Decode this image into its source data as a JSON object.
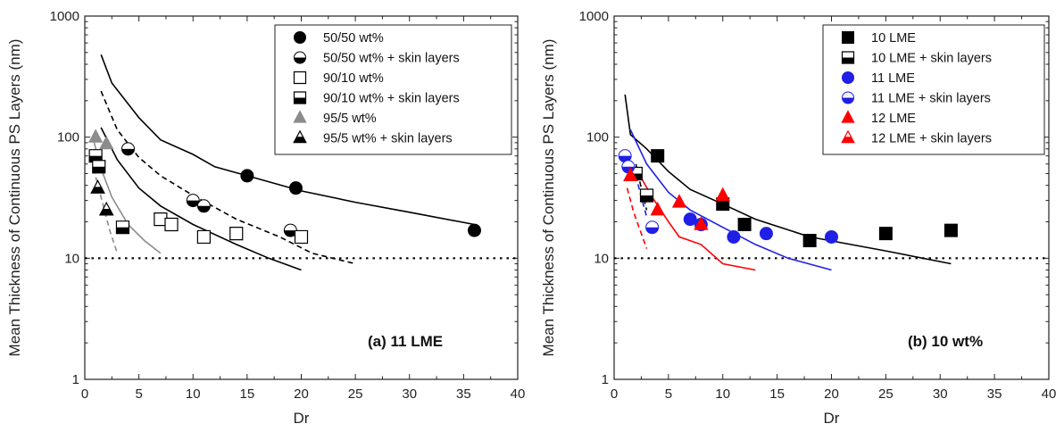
{
  "chart_data": [
    {
      "type": "scatter",
      "panel_label": "(a) 11 LME",
      "xlabel": "Dr",
      "ylabel": "Mean Thickness of Continuous PS Layers (nm)",
      "xlim": [
        0,
        40
      ],
      "ylim": [
        1,
        1000
      ],
      "yscale": "log",
      "x_ticks": [
        "0",
        "5",
        "10",
        "15",
        "20",
        "25",
        "30",
        "35",
        "40"
      ],
      "y_ticks": [
        "1",
        "10",
        "100",
        "1000"
      ],
      "legend_position": "top-right",
      "reference_line": {
        "y": 10,
        "style": "dotted"
      },
      "series": [
        {
          "name": "50/50 wt%",
          "marker": "circle",
          "fill": "full",
          "color": "#000000",
          "points": [
            [
              15,
              48
            ],
            [
              19.5,
              38
            ],
            [
              36,
              17
            ]
          ]
        },
        {
          "name": "50/50 wt% + skin layers",
          "marker": "circle",
          "fill": "half",
          "color": "#000000",
          "points": [
            [
              4,
              80
            ],
            [
              10,
              30
            ],
            [
              11,
              27
            ],
            [
              19,
              17
            ]
          ]
        },
        {
          "name": "90/10 wt%",
          "marker": "square",
          "fill": "none",
          "color": "#000000",
          "points": [
            [
              7,
              21
            ],
            [
              8,
              19
            ],
            [
              11,
              15
            ],
            [
              14,
              16
            ],
            [
              20,
              15
            ]
          ]
        },
        {
          "name": "90/10 wt% + skin layers",
          "marker": "square",
          "fill": "half",
          "color": "#000000",
          "points": [
            [
              1,
              70
            ],
            [
              1.3,
              57
            ],
            [
              3.5,
              18
            ]
          ]
        },
        {
          "name": "95/5 wt%",
          "marker": "triangle",
          "fill": "full",
          "color": "#8c8c8c",
          "points": [
            [
              1,
              100
            ],
            [
              2,
              88
            ]
          ]
        },
        {
          "name": "95/5 wt% + skin layers",
          "marker": "triangle",
          "fill": "half",
          "color": "#000000",
          "points": [
            [
              1.2,
              38
            ],
            [
              2,
              25
            ]
          ]
        }
      ],
      "curves": [
        {
          "color": "#000000",
          "style": "solid",
          "points": [
            [
              1.5,
              480
            ],
            [
              2.5,
              280
            ],
            [
              5,
              145
            ],
            [
              7,
              95
            ],
            [
              10,
              72
            ],
            [
              12,
              57
            ],
            [
              15,
              48
            ],
            [
              20,
              36
            ],
            [
              25,
              29
            ],
            [
              30,
              24
            ],
            [
              36,
              19
            ]
          ]
        },
        {
          "color": "#000000",
          "style": "dashed",
          "points": [
            [
              1.5,
              240
            ],
            [
              3,
              115
            ],
            [
              5,
              68
            ],
            [
              7,
              48
            ],
            [
              10,
              33
            ],
            [
              14,
              21
            ],
            [
              18,
              15
            ],
            [
              21,
              11
            ],
            [
              25,
              9
            ]
          ]
        },
        {
          "color": "#000000",
          "style": "solid",
          "points": [
            [
              1.5,
              120
            ],
            [
              3,
              65
            ],
            [
              5,
              38
            ],
            [
              7,
              27
            ],
            [
              10,
              19
            ],
            [
              14,
              13
            ],
            [
              17,
              10
            ],
            [
              20,
              8
            ]
          ]
        },
        {
          "color": "#8c8c8c",
          "style": "solid",
          "points": [
            [
              0.8,
              95
            ],
            [
              1.5,
              55
            ],
            [
              2.5,
              32
            ],
            [
              4,
              19
            ],
            [
              5.5,
              14
            ],
            [
              7,
              11
            ]
          ]
        },
        {
          "color": "#8c8c8c",
          "style": "dashed",
          "points": [
            [
              0.8,
              55
            ],
            [
              1.5,
              32
            ],
            [
              2.3,
              17
            ],
            [
              3,
              11
            ]
          ]
        }
      ]
    },
    {
      "type": "scatter",
      "panel_label": "(b) 10 wt%",
      "xlabel": "Dr",
      "ylabel": "Mean Thickness of Continuous PS Layers (nm)",
      "xlim": [
        0,
        40
      ],
      "ylim": [
        1,
        1000
      ],
      "yscale": "log",
      "x_ticks": [
        "0",
        "5",
        "10",
        "15",
        "20",
        "25",
        "30",
        "35",
        "40"
      ],
      "y_ticks": [
        "1",
        "10",
        "100",
        "1000"
      ],
      "legend_position": "top-right",
      "reference_line": {
        "y": 10,
        "style": "dotted"
      },
      "series": [
        {
          "name": "10 LME",
          "marker": "square",
          "fill": "full",
          "color": "#000000",
          "points": [
            [
              4,
              70
            ],
            [
              10,
              28
            ],
            [
              12,
              19
            ],
            [
              18,
              14
            ],
            [
              25,
              16
            ],
            [
              31,
              17
            ]
          ]
        },
        {
          "name": "10 LME + skin layers",
          "marker": "square",
          "fill": "half",
          "color": "#000000",
          "points": [
            [
              2,
              50
            ],
            [
              3,
              33
            ]
          ]
        },
        {
          "name": "11 LME",
          "marker": "circle",
          "fill": "full",
          "color": "#1f1fe6",
          "points": [
            [
              7,
              21
            ],
            [
              8,
              19
            ],
            [
              11,
              15
            ],
            [
              14,
              16
            ],
            [
              20,
              15
            ]
          ]
        },
        {
          "name": "11 LME + skin layers",
          "marker": "circle",
          "fill": "half",
          "color": "#1f1fe6",
          "points": [
            [
              1,
              70
            ],
            [
              1.3,
              57
            ],
            [
              3.5,
              18
            ]
          ]
        },
        {
          "name": "12 LME",
          "marker": "triangle",
          "fill": "full",
          "color": "#ff0000",
          "points": [
            [
              1.5,
              48
            ],
            [
              4,
              25
            ],
            [
              6,
              29
            ],
            [
              8,
              19
            ],
            [
              10,
              33
            ]
          ]
        },
        {
          "name": "12 LME + skin layers",
          "marker": "triangle",
          "fill": "half",
          "color": "#ff0000",
          "points": []
        }
      ],
      "curves": [
        {
          "color": "#000000",
          "style": "solid",
          "points": [
            [
              1,
              225
            ],
            [
              1.5,
              105
            ],
            [
              3,
              80
            ],
            [
              5,
              52
            ],
            [
              7,
              37
            ],
            [
              10,
              28
            ],
            [
              13,
              21
            ],
            [
              18,
              15
            ],
            [
              25,
              11.5
            ],
            [
              31,
              9
            ]
          ]
        },
        {
          "color": "#1f1fe6",
          "style": "solid",
          "points": [
            [
              1.5,
              115
            ],
            [
              3,
              60
            ],
            [
              5,
              35
            ],
            [
              7,
              25
            ],
            [
              10,
              18
            ],
            [
              13,
              13
            ],
            [
              16,
              10
            ],
            [
              20,
              8
            ]
          ]
        },
        {
          "color": "#ff0000",
          "style": "solid",
          "points": [
            [
              2,
              55
            ],
            [
              3.5,
              32
            ],
            [
              5,
              20
            ],
            [
              6,
              15
            ],
            [
              8,
              13
            ],
            [
              10,
              9
            ],
            [
              13,
              8
            ]
          ]
        },
        {
          "color": "#000000",
          "style": "dashed",
          "points": [
            [
              2,
              60
            ],
            [
              2.5,
              38
            ],
            [
              3,
              25
            ]
          ]
        },
        {
          "color": "#1f1fe6",
          "style": "dashed",
          "points": [
            [
              2,
              48
            ],
            [
              2.5,
              32
            ],
            [
              3,
              22
            ]
          ]
        },
        {
          "color": "#ff0000",
          "style": "dashed",
          "points": [
            [
              1.2,
              38
            ],
            [
              1.8,
              24
            ],
            [
              2.5,
              16
            ],
            [
              3,
              12
            ]
          ]
        }
      ]
    }
  ]
}
